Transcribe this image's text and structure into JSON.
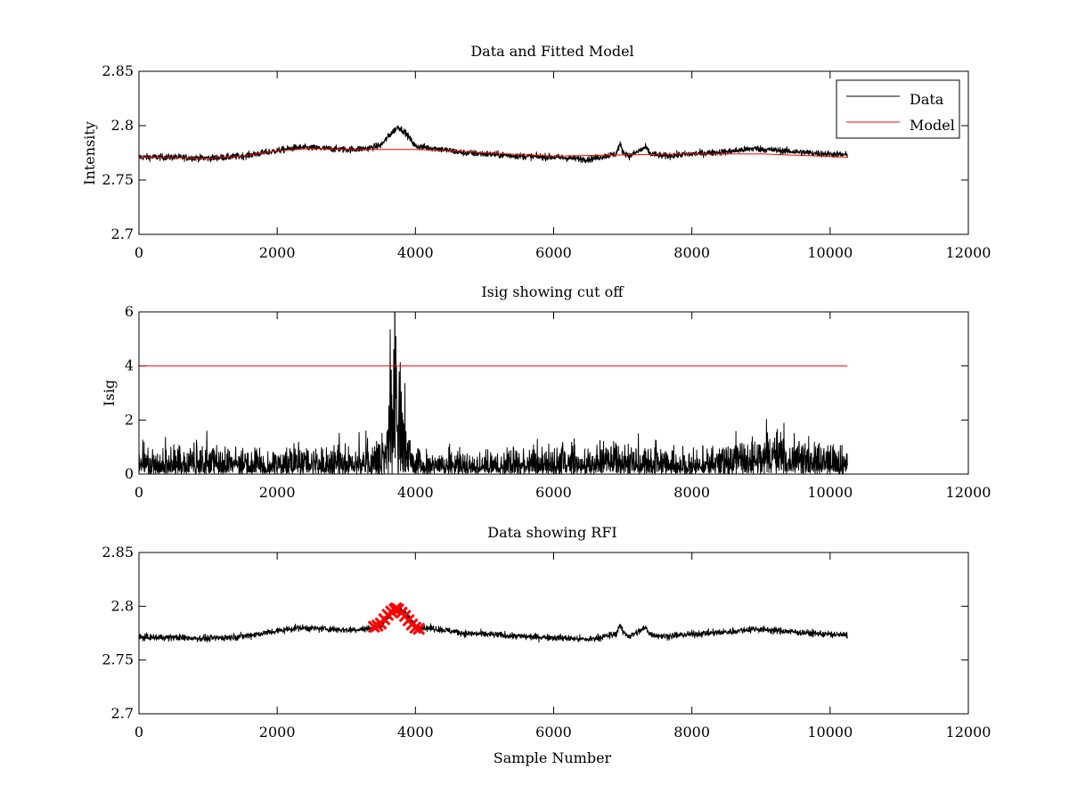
{
  "chart_data": [
    {
      "type": "line",
      "title": "Data and Fitted Model",
      "xlabel": "",
      "ylabel": "Intensity",
      "xlim": [
        0,
        12000
      ],
      "ylim": [
        2.7,
        2.85
      ],
      "xticks": [
        0,
        2000,
        4000,
        6000,
        8000,
        10000,
        12000
      ],
      "xtick_labels": [
        "0",
        "2000",
        "4000",
        "6000",
        "8000",
        "10000",
        "12000"
      ],
      "yticks": [
        2.7,
        2.75,
        2.8,
        2.85
      ],
      "ytick_labels": [
        "2.7",
        "2.75",
        "2.8",
        "2.85"
      ],
      "legend_position": "top-right",
      "series": [
        {
          "name": "Data",
          "color": "#000000",
          "style": "noisy-line",
          "x": [
            0,
            500,
            1000,
            1500,
            2000,
            2300,
            2700,
            3000,
            3300,
            3500,
            3650,
            3750,
            3850,
            4000,
            4300,
            4700,
            5000,
            5500,
            6000,
            6500,
            6900,
            6960,
            7000,
            7100,
            7330,
            7400,
            7600,
            8000,
            8500,
            8900,
            9300,
            9700,
            10250
          ],
          "values": [
            2.771,
            2.771,
            2.77,
            2.772,
            2.777,
            2.78,
            2.779,
            2.778,
            2.779,
            2.782,
            2.793,
            2.799,
            2.794,
            2.781,
            2.779,
            2.775,
            2.774,
            2.772,
            2.771,
            2.769,
            2.774,
            2.783,
            2.776,
            2.772,
            2.78,
            2.774,
            2.772,
            2.774,
            2.776,
            2.779,
            2.777,
            2.775,
            2.773
          ],
          "noise": 0.003
        },
        {
          "name": "Model",
          "color": "#ff0000",
          "style": "line",
          "x": [
            0,
            1000,
            1500,
            2000,
            2500,
            3000,
            3500,
            4000,
            4500,
            5000,
            6000,
            7000,
            8000,
            9000,
            10250
          ],
          "values": [
            2.771,
            2.77,
            2.772,
            2.777,
            2.779,
            2.778,
            2.778,
            2.778,
            2.777,
            2.775,
            2.772,
            2.773,
            2.774,
            2.774,
            2.771
          ]
        }
      ]
    },
    {
      "type": "line",
      "title": "Isig showing cut off",
      "xlabel": "",
      "ylabel": "Isig",
      "xlim": [
        0,
        12000
      ],
      "ylim": [
        0,
        6
      ],
      "xticks": [
        0,
        2000,
        4000,
        6000,
        8000,
        10000,
        12000
      ],
      "xtick_labels": [
        "0",
        "2000",
        "4000",
        "6000",
        "8000",
        "10000",
        "12000"
      ],
      "yticks": [
        0,
        2,
        4,
        6
      ],
      "ytick_labels": [
        "0",
        "2",
        "4",
        "6"
      ],
      "series": [
        {
          "name": "Isig",
          "color": "#000000",
          "style": "noisy-abs",
          "x": [
            0,
            1000,
            2000,
            3000,
            3400,
            3550,
            3650,
            3700,
            3800,
            3850,
            3950,
            4100,
            5000,
            6000,
            7000,
            7500,
            8000,
            8500,
            9000,
            9500,
            10250
          ],
          "values": [
            0.8,
            0.75,
            0.75,
            0.8,
            0.85,
            1.5,
            3.5,
            4.5,
            3.6,
            2.2,
            0.9,
            0.7,
            0.6,
            0.8,
            0.9,
            0.8,
            0.6,
            0.9,
            1.3,
            1.1,
            0.8
          ],
          "noise": 0.5
        },
        {
          "name": "Cut off",
          "color": "#ff0000",
          "style": "line",
          "x": [
            0,
            10250
          ],
          "values": [
            4,
            4
          ]
        }
      ]
    },
    {
      "type": "line",
      "title": "Data showing RFI",
      "xlabel": "Sample Number",
      "ylabel": "",
      "xlim": [
        0,
        12000
      ],
      "ylim": [
        2.7,
        2.85
      ],
      "xticks": [
        0,
        2000,
        4000,
        6000,
        8000,
        10000,
        12000
      ],
      "xtick_labels": [
        "0",
        "2000",
        "4000",
        "6000",
        "8000",
        "10000",
        "12000"
      ],
      "yticks": [
        2.7,
        2.75,
        2.8,
        2.85
      ],
      "ytick_labels": [
        "2.7",
        "2.75",
        "2.8",
        "2.85"
      ],
      "series": [
        {
          "name": "Data",
          "color": "#000000",
          "style": "noisy-line",
          "x": [
            0,
            500,
            1000,
            1500,
            2000,
            2300,
            2700,
            3000,
            3300,
            3500,
            3650,
            3750,
            3850,
            4000,
            4300,
            4700,
            5000,
            5500,
            6000,
            6500,
            6900,
            6960,
            7000,
            7100,
            7330,
            7400,
            7600,
            8000,
            8500,
            8900,
            9300,
            9700,
            10250
          ],
          "values": [
            2.771,
            2.771,
            2.77,
            2.772,
            2.777,
            2.78,
            2.779,
            2.778,
            2.779,
            2.782,
            2.793,
            2.799,
            2.794,
            2.781,
            2.779,
            2.775,
            2.774,
            2.772,
            2.771,
            2.769,
            2.774,
            2.783,
            2.776,
            2.772,
            2.78,
            2.774,
            2.772,
            2.774,
            2.776,
            2.779,
            2.777,
            2.775,
            2.773
          ],
          "noise": 0.003
        },
        {
          "name": "RFI",
          "color": "#ff0000",
          "style": "markers-x",
          "x": [
            3400,
            3450,
            3500,
            3550,
            3600,
            3650,
            3700,
            3720,
            3750,
            3800,
            3850,
            3900,
            3950,
            4000,
            4050
          ],
          "values": [
            2.781,
            2.782,
            2.784,
            2.788,
            2.792,
            2.795,
            2.797,
            2.798,
            2.797,
            2.794,
            2.791,
            2.787,
            2.783,
            2.78,
            2.779
          ]
        }
      ]
    }
  ]
}
